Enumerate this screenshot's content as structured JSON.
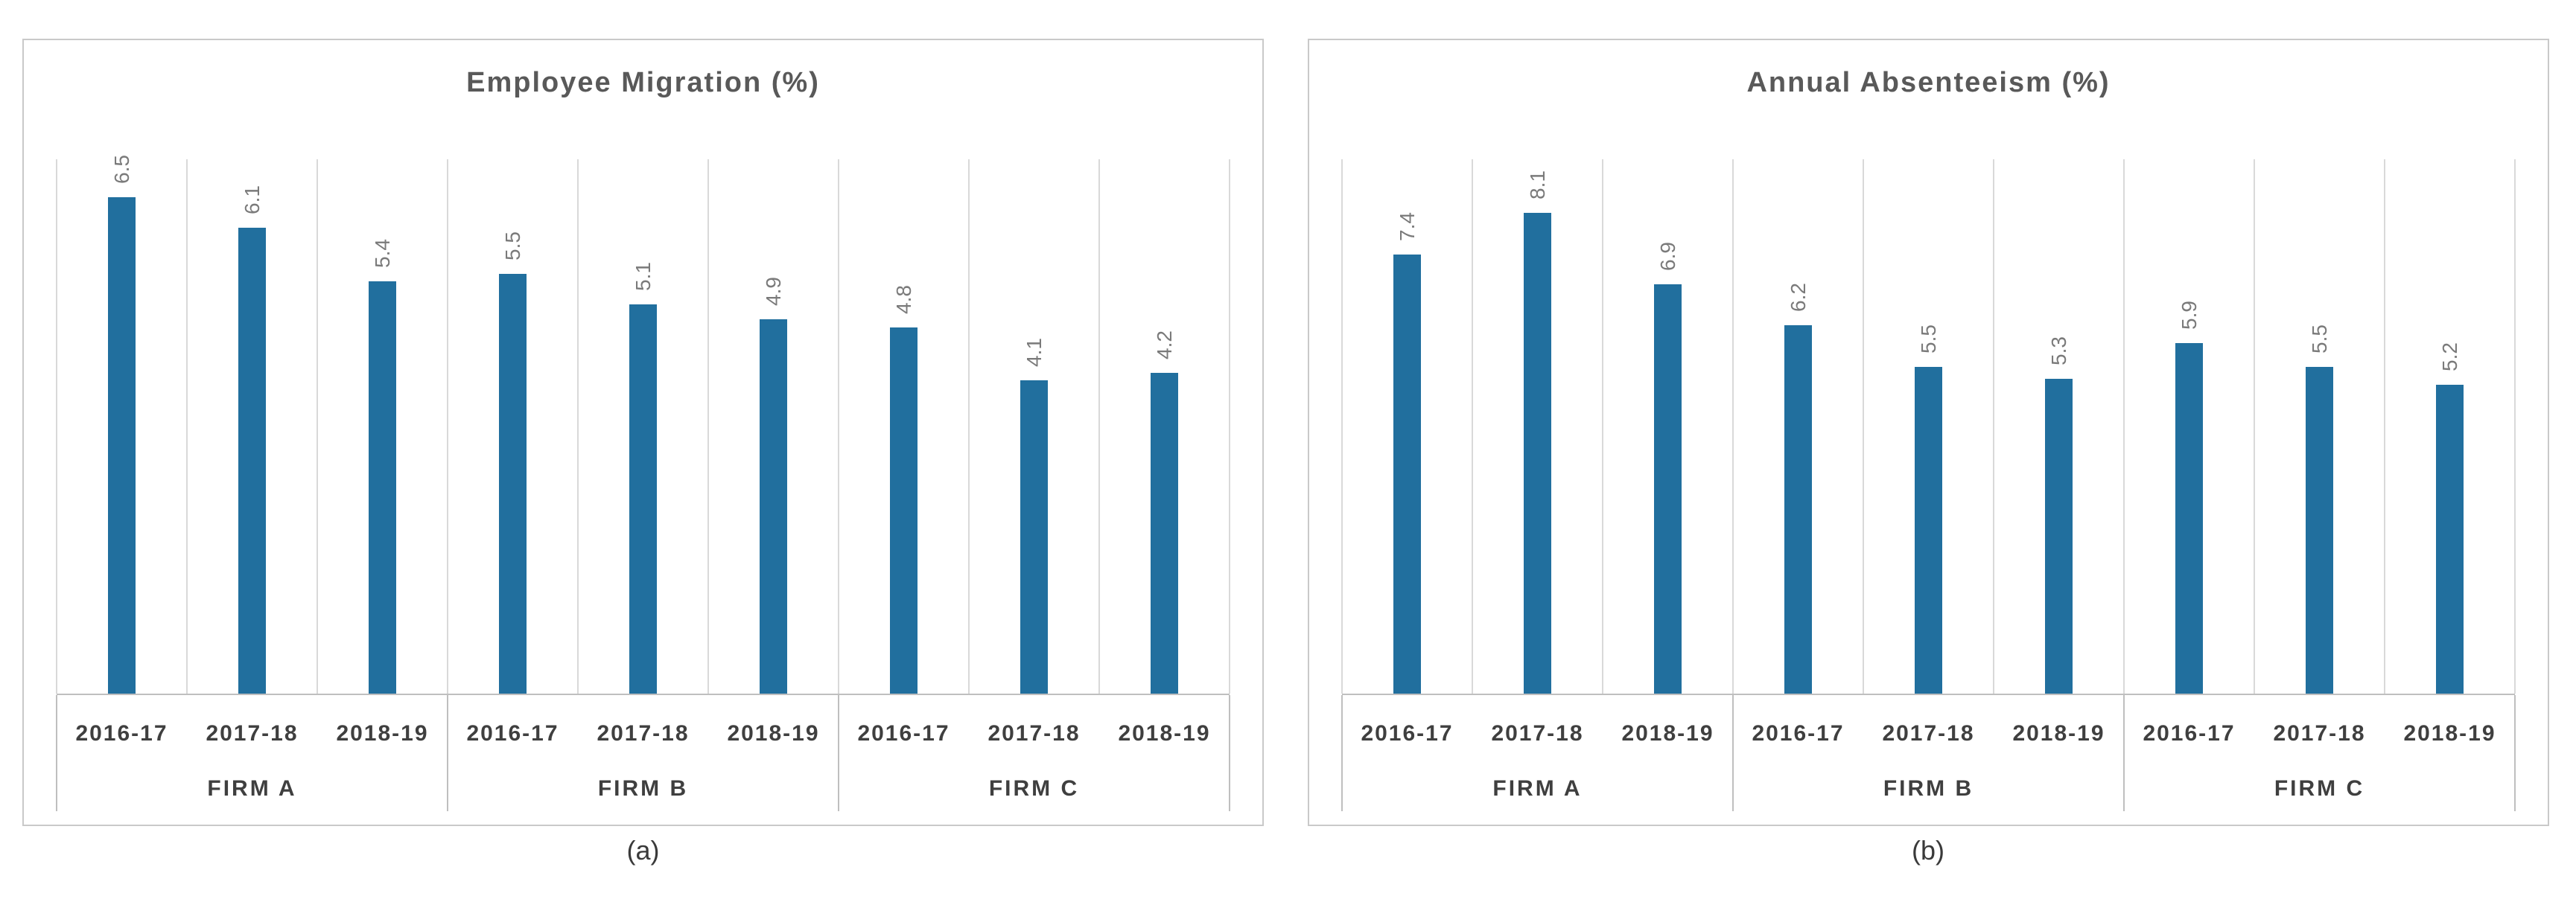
{
  "colors": {
    "bar": "#216f9e",
    "gridline": "#d9d9d9",
    "axis_line": "#bfbfbf",
    "group_separator": "#bfbfbf",
    "panel_border": "#c9c9c9",
    "title_text": "#595959",
    "axis_label_text": "#3f3f3f",
    "value_label_text": "#7a7a7a",
    "background": "#ffffff"
  },
  "captions": {
    "a": "(a)",
    "b": "(b)"
  },
  "chart_data": [
    {
      "type": "bar",
      "title": "Employee Migration (%)",
      "panel_caption": "(a)",
      "groups": [
        "FIRM A",
        "FIRM B",
        "FIRM C"
      ],
      "years": [
        "2016-17",
        "2017-18",
        "2018-19"
      ],
      "categories": [
        "2016-17",
        "2017-18",
        "2018-19",
        "2016-17",
        "2017-18",
        "2018-19",
        "2016-17",
        "2017-18",
        "2018-19"
      ],
      "values": [
        6.5,
        6.1,
        5.4,
        5.5,
        5.1,
        4.9,
        4.8,
        4.1,
        4.2
      ],
      "value_labels": [
        "6.5",
        "6.1",
        "5.4",
        "5.5",
        "5.1",
        "4.9",
        "4.8",
        "4.1",
        "4.2"
      ],
      "ylim": [
        0,
        7
      ],
      "xlabel": "",
      "ylabel": "",
      "legend": "none",
      "grid": "vertical category gridlines only",
      "data_label_style": "rotated 90deg, reading bottom-to-top, above each bar"
    },
    {
      "type": "bar",
      "title": "Annual Absenteeism (%)",
      "panel_caption": "(b)",
      "groups": [
        "FIRM A",
        "FIRM B",
        "FIRM C"
      ],
      "years": [
        "2016-17",
        "2017-18",
        "2018-19"
      ],
      "categories": [
        "2016-17",
        "2017-18",
        "2018-19",
        "2016-17",
        "2017-18",
        "2018-19",
        "2016-17",
        "2017-18",
        "2018-19"
      ],
      "values": [
        7.4,
        8.1,
        6.9,
        6.2,
        5.5,
        5.3,
        5.9,
        5.5,
        5.2
      ],
      "value_labels": [
        "7.4",
        "8.1",
        "6.9",
        "6.2",
        "5.5",
        "5.3",
        "5.9",
        "5.5",
        "5.2"
      ],
      "ylim": [
        0,
        9
      ],
      "xlabel": "",
      "ylabel": "",
      "legend": "none",
      "grid": "vertical category gridlines only",
      "data_label_style": "rotated 90deg, reading bottom-to-top, above each bar"
    }
  ]
}
